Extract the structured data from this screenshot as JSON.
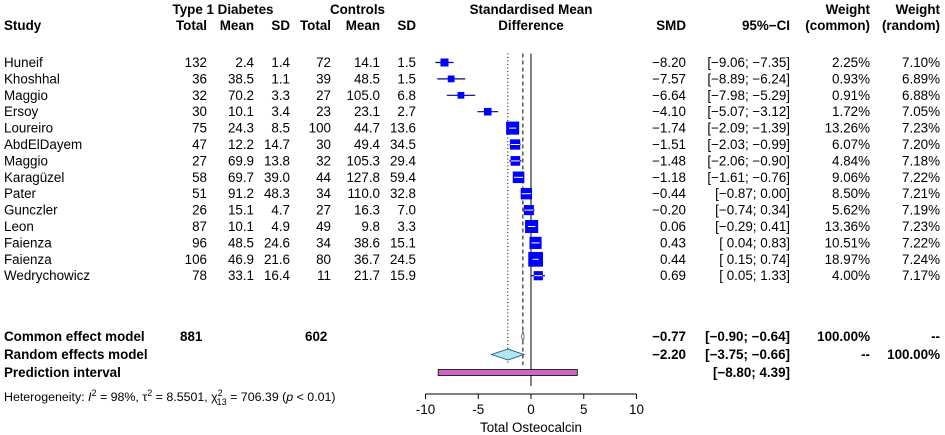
{
  "chart_data": {
    "type": "forest",
    "headers": {
      "study": "Study",
      "group1": "Type 1 Diabetes",
      "group2": "Controls",
      "total": "Total",
      "mean": "Mean",
      "sd": "SD",
      "plot_title_line1": "Standardised Mean",
      "plot_title_line2": "Difference",
      "smd": "SMD",
      "ci": "95%−CI",
      "weight": "Weight",
      "weight_common": "(common)",
      "weight_random": "(random)"
    },
    "studies": [
      {
        "study": "Huneif",
        "t1_total": "132",
        "t1_mean": "2.4",
        "t1_sd": "1.4",
        "c_total": "72",
        "c_mean": "14.1",
        "c_sd": "1.5",
        "smd_text": "−8.20",
        "ci_text": "[−9.06; −7.35]",
        "w_common": "2.25%",
        "w_random": "7.10%",
        "smd": -8.2,
        "lower": -9.06,
        "upper": -7.35,
        "weight_common": 2.25
      },
      {
        "study": "Khoshhal",
        "t1_total": "36",
        "t1_mean": "38.5",
        "t1_sd": "1.1",
        "c_total": "39",
        "c_mean": "48.5",
        "c_sd": "1.5",
        "smd_text": "−7.57",
        "ci_text": "[−8.89; −6.24]",
        "w_common": "0.93%",
        "w_random": "6.89%",
        "smd": -7.57,
        "lower": -8.89,
        "upper": -6.24,
        "weight_common": 0.93
      },
      {
        "study": "Maggio",
        "t1_total": "32",
        "t1_mean": "70.2",
        "t1_sd": "3.3",
        "c_total": "27",
        "c_mean": "105.0",
        "c_sd": "6.8",
        "smd_text": "−6.64",
        "ci_text": "[−7.98; −5.29]",
        "w_common": "0.91%",
        "w_random": "6.88%",
        "smd": -6.64,
        "lower": -7.98,
        "upper": -5.29,
        "weight_common": 0.91
      },
      {
        "study": "Ersoy",
        "t1_total": "30",
        "t1_mean": "10.1",
        "t1_sd": "3.4",
        "c_total": "23",
        "c_mean": "23.1",
        "c_sd": "2.7",
        "smd_text": "−4.10",
        "ci_text": "[−5.07; −3.12]",
        "w_common": "1.72%",
        "w_random": "7.05%",
        "smd": -4.1,
        "lower": -5.07,
        "upper": -3.12,
        "weight_common": 1.72
      },
      {
        "study": "Loureiro",
        "t1_total": "75",
        "t1_mean": "24.3",
        "t1_sd": "8.5",
        "c_total": "100",
        "c_mean": "44.7",
        "c_sd": "13.6",
        "smd_text": "−1.74",
        "ci_text": "[−2.09; −1.39]",
        "w_common": "13.26%",
        "w_random": "7.23%",
        "smd": -1.74,
        "lower": -2.09,
        "upper": -1.39,
        "weight_common": 13.26
      },
      {
        "study": "AbdElDayem",
        "t1_total": "47",
        "t1_mean": "12.2",
        "t1_sd": "14.7",
        "c_total": "30",
        "c_mean": "49.4",
        "c_sd": "34.5",
        "smd_text": "−1.51",
        "ci_text": "[−2.03; −0.99]",
        "w_common": "6.07%",
        "w_random": "7.20%",
        "smd": -1.51,
        "lower": -2.03,
        "upper": -0.99,
        "weight_common": 6.07
      },
      {
        "study": "Maggio",
        "t1_total": "27",
        "t1_mean": "69.9",
        "t1_sd": "13.8",
        "c_total": "32",
        "c_mean": "105.3",
        "c_sd": "29.4",
        "smd_text": "−1.48",
        "ci_text": "[−2.06; −0.90]",
        "w_common": "4.84%",
        "w_random": "7.18%",
        "smd": -1.48,
        "lower": -2.06,
        "upper": -0.9,
        "weight_common": 4.84
      },
      {
        "study": "Karagüzel",
        "t1_total": "58",
        "t1_mean": "69.7",
        "t1_sd": "39.0",
        "c_total": "44",
        "c_mean": "127.8",
        "c_sd": "59.4",
        "smd_text": "−1.18",
        "ci_text": "[−1.61; −0.76]",
        "w_common": "9.06%",
        "w_random": "7.22%",
        "smd": -1.18,
        "lower": -1.61,
        "upper": -0.76,
        "weight_common": 9.06
      },
      {
        "study": "Pater",
        "t1_total": "51",
        "t1_mean": "91.2",
        "t1_sd": "48.3",
        "c_total": "34",
        "c_mean": "110.0",
        "c_sd": "32.8",
        "smd_text": "−0.44",
        "ci_text": "[−0.87; 0.00]",
        "w_common": "8.50%",
        "w_random": "7.21%",
        "smd": -0.44,
        "lower": -0.87,
        "upper": 0.0,
        "weight_common": 8.5
      },
      {
        "study": "Gunczler",
        "t1_total": "26",
        "t1_mean": "15.1",
        "t1_sd": "4.7",
        "c_total": "27",
        "c_mean": "16.3",
        "c_sd": "7.0",
        "smd_text": "−0.20",
        "ci_text": "[−0.74; 0.34]",
        "w_common": "5.62%",
        "w_random": "7.19%",
        "smd": -0.2,
        "lower": -0.74,
        "upper": 0.34,
        "weight_common": 5.62
      },
      {
        "study": "Leon",
        "t1_total": "87",
        "t1_mean": "10.1",
        "t1_sd": "4.9",
        "c_total": "49",
        "c_mean": "9.8",
        "c_sd": "3.3",
        "smd_text": "0.06",
        "ci_text": "[−0.29; 0.41]",
        "w_common": "13.36%",
        "w_random": "7.23%",
        "smd": 0.06,
        "lower": -0.29,
        "upper": 0.41,
        "weight_common": 13.36
      },
      {
        "study": "Faienza",
        "t1_total": "96",
        "t1_mean": "48.5",
        "t1_sd": "24.6",
        "c_total": "34",
        "c_mean": "38.6",
        "c_sd": "15.1",
        "smd_text": "0.43",
        "ci_text": "[ 0.04; 0.83]",
        "w_common": "10.51%",
        "w_random": "7.22%",
        "smd": 0.43,
        "lower": 0.04,
        "upper": 0.83,
        "weight_common": 10.51
      },
      {
        "study": "Faienza",
        "t1_total": "106",
        "t1_mean": "46.9",
        "t1_sd": "21.6",
        "c_total": "80",
        "c_mean": "36.7",
        "c_sd": "24.5",
        "smd_text": "0.44",
        "ci_text": "[ 0.15; 0.74]",
        "w_common": "18.97%",
        "w_random": "7.24%",
        "smd": 0.44,
        "lower": 0.15,
        "upper": 0.74,
        "weight_common": 18.97
      },
      {
        "study": "Wedrychowicz",
        "t1_total": "78",
        "t1_mean": "33.1",
        "t1_sd": "16.4",
        "c_total": "11",
        "c_mean": "21.7",
        "c_sd": "15.9",
        "smd_text": "0.69",
        "ci_text": "[ 0.05; 1.33]",
        "w_common": "4.00%",
        "w_random": "7.17%",
        "smd": 0.69,
        "lower": 0.05,
        "upper": 1.33,
        "weight_common": 4.0
      }
    ],
    "common": {
      "label": "Common effect model",
      "t1_total": "881",
      "c_total": "602",
      "smd_text": "−0.77",
      "ci_text": "[−0.90; −0.64]",
      "w_common": "100.00%",
      "w_random": "--",
      "smd": -0.77,
      "lower": -0.9,
      "upper": -0.64
    },
    "random": {
      "label": "Random effects model",
      "smd_text": "−2.20",
      "ci_text": "[−3.75; −0.66]",
      "w_common": "--",
      "w_random": "100.00%",
      "smd": -2.2,
      "lower": -3.75,
      "upper": -0.66
    },
    "prediction": {
      "label": "Prediction interval",
      "ci_text": "[−8.80; 4.39]",
      "lower": -8.8,
      "upper": 4.39
    },
    "heterogeneity": {
      "prefix": "Heterogeneity: ",
      "i2_symbol": "I",
      "i2_value": " = 98%, ",
      "tau2_symbol": "τ",
      "tau2_value": " = 8.5501, ",
      "chi2_symbol": "χ",
      "chi2_df": "13",
      "chi2_value": " = 706.39 (",
      "p_symbol": "p",
      "p_value": " < 0.01)"
    },
    "xaxis": {
      "label": "Total Osteocalcin",
      "ticks": [
        -10,
        -5,
        0,
        5,
        10
      ],
      "range": [
        -10,
        10
      ]
    },
    "colors": {
      "square": "#0000ff",
      "ci_line": "#000080",
      "diamond": "#b3e5ef",
      "prediction": "#cc66cc",
      "diamond_stroke": "#00527a"
    }
  }
}
